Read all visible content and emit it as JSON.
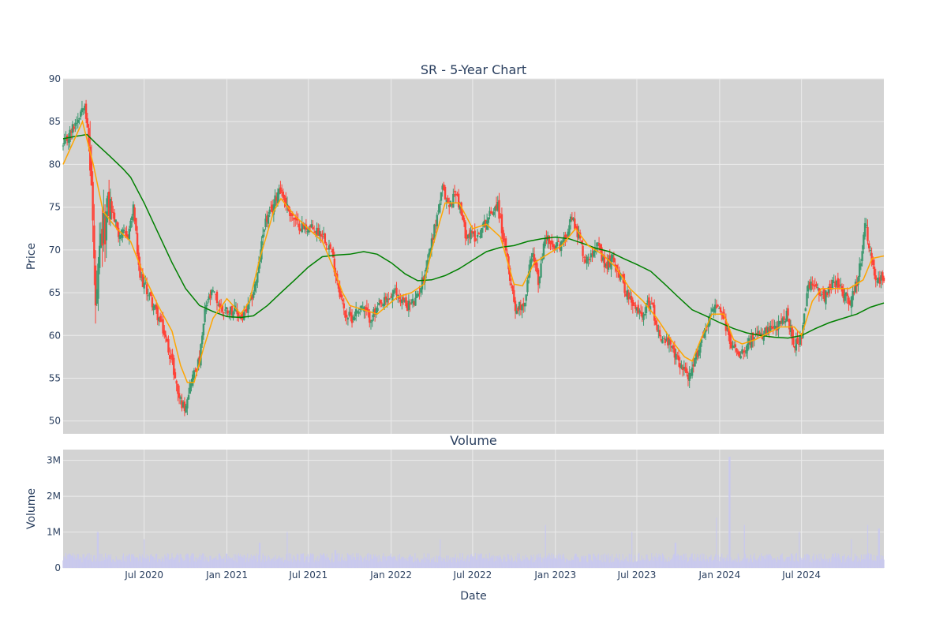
{
  "colors": {
    "plot_bg": "#d3d3d3",
    "grid": "#ebebeb",
    "increasing": "#3d9970",
    "decreasing": "#ff4136",
    "ma_short": "#ffa500",
    "ma_long": "#008000",
    "volume": "#c9c9ee",
    "text": "#2a3f5f"
  },
  "chart_data": [
    {
      "type": "candlestick",
      "title": "SR - 5-Year Chart",
      "xlabel": "",
      "ylabel": "Price",
      "ylim": [
        48.5,
        90
      ],
      "yticks": [
        50,
        55,
        60,
        65,
        70,
        75,
        80,
        85,
        90
      ],
      "xlim": [
        "2020-01-03",
        "2024-12-31"
      ],
      "x_tick_dates": [
        "2020-07-01",
        "2021-01-01",
        "2021-07-01",
        "2022-01-01",
        "2022-07-01",
        "2023-01-01",
        "2023-07-01",
        "2024-01-01",
        "2024-07-01"
      ],
      "x_tick_labels": [
        "Jul 2020",
        "Jan 2021",
        "Jul 2021",
        "Jan 2022",
        "Jul 2022",
        "Jan 2023",
        "Jul 2023",
        "Jan 2024",
        "Jul 2024"
      ],
      "grid": true,
      "legend": "none",
      "close_path": [
        [
          "2020-01-03",
          82.0
        ],
        [
          "2020-02-05",
          85.5
        ],
        [
          "2020-02-20",
          87.5
        ],
        [
          "2020-03-05",
          79.0
        ],
        [
          "2020-03-16",
          62.0
        ],
        [
          "2020-03-25",
          70.0
        ],
        [
          "2020-04-15",
          75.5
        ],
        [
          "2020-05-05",
          72.0
        ],
        [
          "2020-05-25",
          71.5
        ],
        [
          "2020-06-08",
          75.0
        ],
        [
          "2020-06-20",
          67.0
        ],
        [
          "2020-07-10",
          65.0
        ],
        [
          "2020-08-10",
          61.0
        ],
        [
          "2020-09-01",
          57.0
        ],
        [
          "2020-09-15",
          53.0
        ],
        [
          "2020-09-28",
          51.5
        ],
        [
          "2020-10-15",
          55.0
        ],
        [
          "2020-11-01",
          57.0
        ],
        [
          "2020-11-15",
          63.5
        ],
        [
          "2020-12-01",
          65.0
        ],
        [
          "2020-12-20",
          63.0
        ],
        [
          "2021-01-15",
          63.0
        ],
        [
          "2021-02-05",
          62.0
        ],
        [
          "2021-02-20",
          63.5
        ],
        [
          "2021-03-10",
          67.0
        ],
        [
          "2021-03-25",
          73.0
        ],
        [
          "2021-04-10",
          74.5
        ],
        [
          "2021-04-28",
          77.5
        ],
        [
          "2021-05-15",
          75.0
        ],
        [
          "2021-06-05",
          73.0
        ],
        [
          "2021-07-05",
          72.5
        ],
        [
          "2021-08-01",
          72.0
        ],
        [
          "2021-08-20",
          70.0
        ],
        [
          "2021-09-05",
          66.0
        ],
        [
          "2021-09-20",
          62.5
        ],
        [
          "2021-10-05",
          62.0
        ],
        [
          "2021-10-25",
          63.5
        ],
        [
          "2021-11-15",
          62.0
        ],
        [
          "2021-12-10",
          63.5
        ],
        [
          "2022-01-10",
          65.0
        ],
        [
          "2022-02-05",
          63.5
        ],
        [
          "2022-02-25",
          64.0
        ],
        [
          "2022-03-15",
          67.0
        ],
        [
          "2022-04-05",
          72.0
        ],
        [
          "2022-04-25",
          77.0
        ],
        [
          "2022-05-10",
          75.0
        ],
        [
          "2022-05-25",
          77.0
        ],
        [
          "2022-06-15",
          72.0
        ],
        [
          "2022-07-10",
          71.5
        ],
        [
          "2022-08-01",
          73.5
        ],
        [
          "2022-08-25",
          75.5
        ],
        [
          "2022-09-15",
          69.0
        ],
        [
          "2022-10-05",
          63.0
        ],
        [
          "2022-10-25",
          64.0
        ],
        [
          "2022-11-10",
          70.0
        ],
        [
          "2022-11-25",
          66.0
        ],
        [
          "2022-12-10",
          72.0
        ],
        [
          "2022-12-25",
          70.0
        ],
        [
          "2023-01-20",
          71.0
        ],
        [
          "2023-02-05",
          74.0
        ],
        [
          "2023-02-20",
          72.0
        ],
        [
          "2023-03-10",
          68.5
        ],
        [
          "2023-04-01",
          71.0
        ],
        [
          "2023-04-20",
          68.0
        ],
        [
          "2023-05-10",
          69.0
        ],
        [
          "2023-06-01",
          66.0
        ],
        [
          "2023-06-20",
          63.5
        ],
        [
          "2023-07-10",
          62.5
        ],
        [
          "2023-08-01",
          64.0
        ],
        [
          "2023-08-20",
          60.0
        ],
        [
          "2023-09-10",
          59.0
        ],
        [
          "2023-09-25",
          57.5
        ],
        [
          "2023-10-15",
          56.0
        ],
        [
          "2023-10-28",
          55.0
        ],
        [
          "2023-11-15",
          58.5
        ],
        [
          "2023-12-05",
          61.5
        ],
        [
          "2023-12-20",
          63.5
        ],
        [
          "2024-01-10",
          62.0
        ],
        [
          "2024-01-25",
          59.0
        ],
        [
          "2024-02-15",
          58.0
        ],
        [
          "2024-03-10",
          59.5
        ],
        [
          "2024-04-01",
          60.0
        ],
        [
          "2024-04-20",
          60.5
        ],
        [
          "2024-05-10",
          61.0
        ],
        [
          "2024-05-28",
          62.5
        ],
        [
          "2024-06-15",
          59.0
        ],
        [
          "2024-07-01",
          59.5
        ],
        [
          "2024-07-15",
          65.5
        ],
        [
          "2024-08-01",
          66.0
        ],
        [
          "2024-08-20",
          64.5
        ],
        [
          "2024-09-10",
          66.5
        ],
        [
          "2024-10-01",
          65.0
        ],
        [
          "2024-10-20",
          64.0
        ],
        [
          "2024-11-05",
          67.0
        ],
        [
          "2024-11-20",
          73.0
        ],
        [
          "2024-12-05",
          68.0
        ],
        [
          "2024-12-20",
          66.0
        ],
        [
          "2024-12-31",
          67.0
        ]
      ],
      "ma_short": {
        "color": "#ffa500",
        "points": [
          [
            "2020-01-03",
            80.0
          ],
          [
            "2020-02-15",
            85.0
          ],
          [
            "2020-03-10",
            80.0
          ],
          [
            "2020-04-01",
            74.5
          ],
          [
            "2020-05-01",
            72.5
          ],
          [
            "2020-06-01",
            71.0
          ],
          [
            "2020-07-01",
            67.0
          ],
          [
            "2020-08-01",
            63.5
          ],
          [
            "2020-09-01",
            60.5
          ],
          [
            "2020-09-20",
            56.5
          ],
          [
            "2020-10-05",
            54.5
          ],
          [
            "2020-10-20",
            54.5
          ],
          [
            "2020-11-10",
            58.5
          ],
          [
            "2020-12-01",
            62.0
          ],
          [
            "2021-01-01",
            64.3
          ],
          [
            "2021-02-01",
            62.5
          ],
          [
            "2021-02-20",
            64.0
          ],
          [
            "2021-03-15",
            69.0
          ],
          [
            "2021-04-15",
            74.5
          ],
          [
            "2021-05-01",
            76.0
          ],
          [
            "2021-06-01",
            74.0
          ],
          [
            "2021-07-01",
            72.5
          ],
          [
            "2021-08-01",
            71.0
          ],
          [
            "2021-08-25",
            68.0
          ],
          [
            "2021-09-15",
            65.0
          ],
          [
            "2021-10-01",
            63.5
          ],
          [
            "2021-11-01",
            63.0
          ],
          [
            "2021-12-01",
            62.5
          ],
          [
            "2022-01-15",
            64.5
          ],
          [
            "2022-02-15",
            65.0
          ],
          [
            "2022-03-15",
            66.0
          ],
          [
            "2022-04-01",
            70.0
          ],
          [
            "2022-05-01",
            75.5
          ],
          [
            "2022-06-01",
            75.5
          ],
          [
            "2022-07-01",
            72.5
          ],
          [
            "2022-08-01",
            73.0
          ],
          [
            "2022-09-01",
            71.5
          ],
          [
            "2022-10-01",
            66.0
          ],
          [
            "2022-10-20",
            65.8
          ],
          [
            "2022-11-15",
            68.5
          ],
          [
            "2022-12-15",
            69.5
          ],
          [
            "2023-01-15",
            70.5
          ],
          [
            "2023-02-15",
            72.5
          ],
          [
            "2023-03-15",
            70.5
          ],
          [
            "2023-04-15",
            69.5
          ],
          [
            "2023-05-15",
            68.0
          ],
          [
            "2023-06-15",
            65.5
          ],
          [
            "2023-07-15",
            64.0
          ],
          [
            "2023-08-15",
            62.0
          ],
          [
            "2023-09-15",
            59.5
          ],
          [
            "2023-10-15",
            57.5
          ],
          [
            "2023-11-01",
            57.0
          ],
          [
            "2023-11-20",
            59.5
          ],
          [
            "2023-12-15",
            62.5
          ],
          [
            "2024-01-10",
            62.5
          ],
          [
            "2024-02-01",
            59.5
          ],
          [
            "2024-02-20",
            59.0
          ],
          [
            "2024-03-20",
            59.5
          ],
          [
            "2024-04-15",
            60.2
          ],
          [
            "2024-05-15",
            61.0
          ],
          [
            "2024-06-15",
            61.0
          ],
          [
            "2024-07-01",
            60.0
          ],
          [
            "2024-07-25",
            64.0
          ],
          [
            "2024-08-15",
            65.5
          ],
          [
            "2024-09-15",
            65.5
          ],
          [
            "2024-10-15",
            65.5
          ],
          [
            "2024-11-15",
            66.5
          ],
          [
            "2024-12-05",
            69.0
          ],
          [
            "2024-12-31",
            69.3
          ]
        ]
      },
      "ma_long": {
        "color": "#008000",
        "points": [
          [
            "2020-01-03",
            83.0
          ],
          [
            "2020-02-01",
            83.3
          ],
          [
            "2020-02-25",
            83.5
          ],
          [
            "2020-03-15",
            82.5
          ],
          [
            "2020-04-15",
            81.0
          ],
          [
            "2020-05-15",
            79.5
          ],
          [
            "2020-06-01",
            78.5
          ],
          [
            "2020-07-01",
            75.5
          ],
          [
            "2020-08-01",
            72.0
          ],
          [
            "2020-09-01",
            68.5
          ],
          [
            "2020-10-01",
            65.5
          ],
          [
            "2020-11-01",
            63.5
          ],
          [
            "2020-12-01",
            62.8
          ],
          [
            "2021-01-01",
            62.2
          ],
          [
            "2021-02-01",
            62.1
          ],
          [
            "2021-03-01",
            62.3
          ],
          [
            "2021-04-01",
            63.5
          ],
          [
            "2021-05-01",
            65.0
          ],
          [
            "2021-06-01",
            66.5
          ],
          [
            "2021-07-01",
            68.0
          ],
          [
            "2021-08-01",
            69.2
          ],
          [
            "2021-09-01",
            69.4
          ],
          [
            "2021-10-01",
            69.5
          ],
          [
            "2021-11-01",
            69.8
          ],
          [
            "2021-12-01",
            69.5
          ],
          [
            "2022-01-01",
            68.5
          ],
          [
            "2022-02-01",
            67.2
          ],
          [
            "2022-03-01",
            66.4
          ],
          [
            "2022-04-01",
            66.5
          ],
          [
            "2022-05-01",
            67.0
          ],
          [
            "2022-06-01",
            67.8
          ],
          [
            "2022-07-01",
            68.8
          ],
          [
            "2022-08-01",
            69.8
          ],
          [
            "2022-09-01",
            70.3
          ],
          [
            "2022-10-01",
            70.5
          ],
          [
            "2022-11-01",
            71.0
          ],
          [
            "2022-12-01",
            71.3
          ],
          [
            "2023-01-01",
            71.5
          ],
          [
            "2023-02-01",
            71.3
          ],
          [
            "2023-03-01",
            70.8
          ],
          [
            "2023-04-01",
            70.2
          ],
          [
            "2023-05-01",
            69.8
          ],
          [
            "2023-06-01",
            69.0
          ],
          [
            "2023-07-01",
            68.3
          ],
          [
            "2023-08-01",
            67.5
          ],
          [
            "2023-09-01",
            66.0
          ],
          [
            "2023-10-01",
            64.5
          ],
          [
            "2023-11-01",
            63.0
          ],
          [
            "2023-12-01",
            62.3
          ],
          [
            "2024-01-01",
            61.5
          ],
          [
            "2024-02-01",
            60.8
          ],
          [
            "2024-03-01",
            60.3
          ],
          [
            "2024-04-01",
            60.0
          ],
          [
            "2024-05-01",
            59.8
          ],
          [
            "2024-06-01",
            59.7
          ],
          [
            "2024-07-01",
            60.0
          ],
          [
            "2024-08-01",
            60.8
          ],
          [
            "2024-09-01",
            61.5
          ],
          [
            "2024-10-01",
            62.0
          ],
          [
            "2024-11-01",
            62.5
          ],
          [
            "2024-12-01",
            63.3
          ],
          [
            "2024-12-31",
            63.8
          ]
        ]
      }
    },
    {
      "type": "bar",
      "title": "Volume",
      "xlabel": "Date",
      "ylabel": "Volume",
      "ylim": [
        0,
        3300000
      ],
      "yticks": [
        0,
        1000000,
        2000000,
        3000000
      ],
      "ytick_labels": [
        "0",
        "1M",
        "2M",
        "3M"
      ],
      "grid": true,
      "color": "#c9c9ee",
      "typical_volume": 300000,
      "spikes": [
        [
          "2020-03-20",
          1000000
        ],
        [
          "2020-07-01",
          800000
        ],
        [
          "2021-03-15",
          700000
        ],
        [
          "2021-05-15",
          1000000
        ],
        [
          "2021-08-30",
          500000
        ],
        [
          "2022-04-20",
          800000
        ],
        [
          "2022-07-20",
          400000
        ],
        [
          "2022-12-10",
          1200000
        ],
        [
          "2023-06-20",
          1000000
        ],
        [
          "2023-09-25",
          700000
        ],
        [
          "2023-12-25",
          1400000
        ],
        [
          "2024-01-23",
          3100000
        ],
        [
          "2024-02-25",
          1200000
        ],
        [
          "2024-06-26",
          1000000
        ],
        [
          "2024-10-20",
          800000
        ],
        [
          "2024-11-25",
          1200000
        ],
        [
          "2024-12-20",
          1100000
        ]
      ]
    }
  ]
}
